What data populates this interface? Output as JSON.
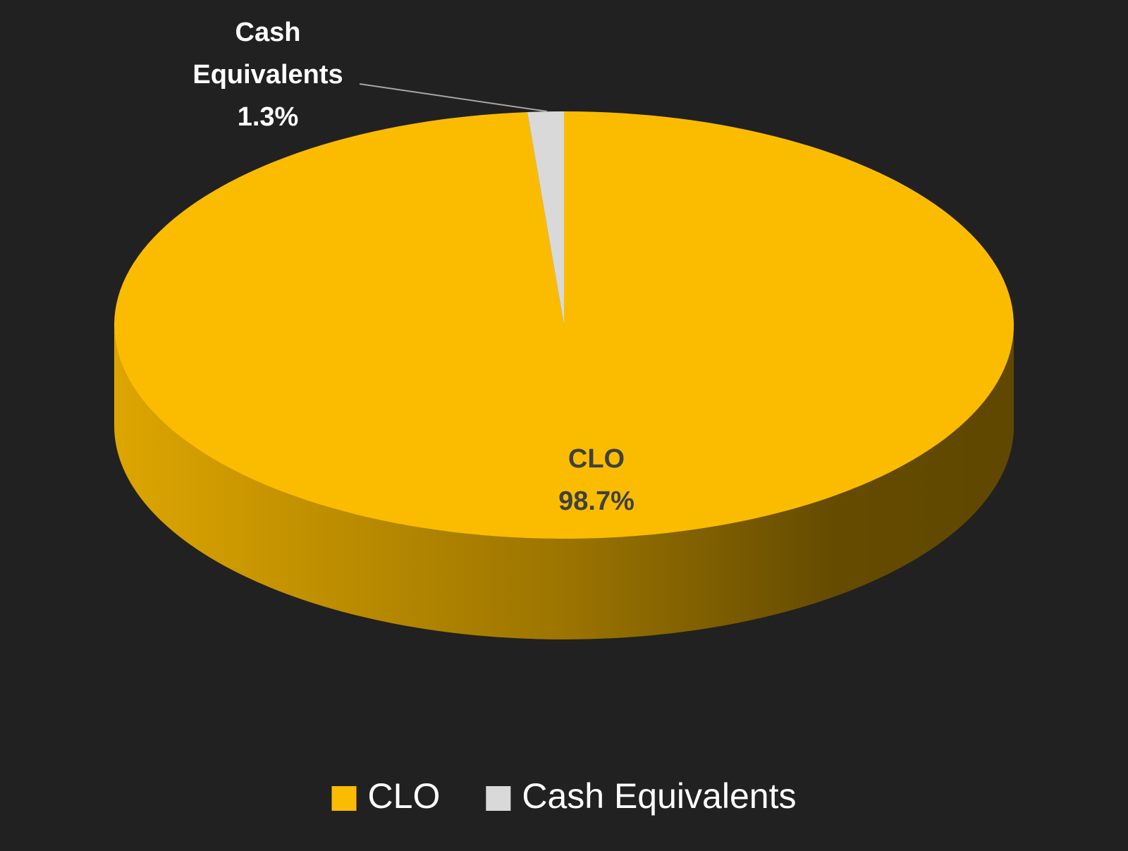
{
  "chart_data": {
    "type": "pie",
    "categories": [
      "CLO",
      "Cash Equivalents"
    ],
    "values": [
      98.7,
      1.3
    ],
    "value_labels": [
      "98.7%",
      "1.3%"
    ],
    "colors": [
      "#fbbc00",
      "#d9d9d9"
    ],
    "legend": "bottom"
  }
}
